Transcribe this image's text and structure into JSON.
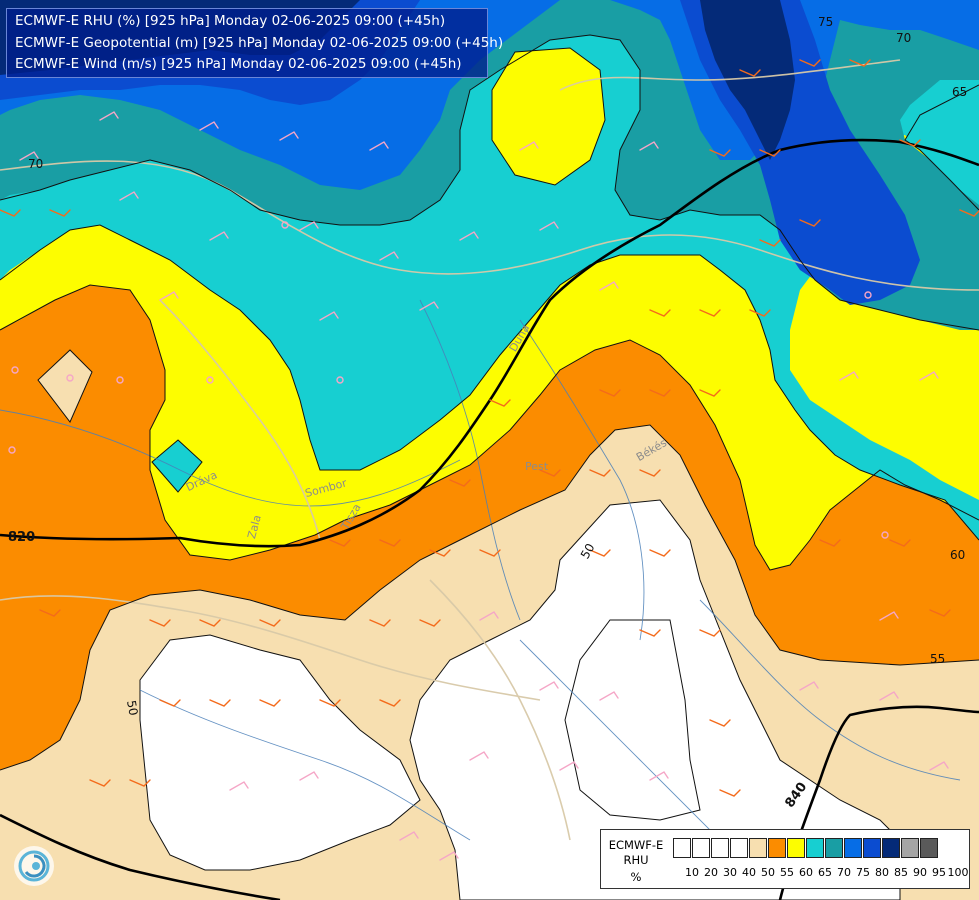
{
  "header": {
    "lines": [
      "ECMWF-E RHU (%) [925 hPa] Monday 02-06-2025 09:00 (+45h)",
      "ECMWF-E Geopotential (m) [925 hPa] Monday 02-06-2025 09:00 (+45h)",
      "ECMWF-E Wind (m/s) [925 hPa] Monday 02-06-2025 09:00 (+45h)"
    ]
  },
  "map": {
    "rhu_contour_labels": [
      "75",
      "70",
      "65",
      "70",
      "60",
      "55",
      "50",
      "50"
    ],
    "geopotential_labels": [
      "820",
      "840"
    ],
    "place_labels": [
      "Pest",
      "Békés",
      "Duna",
      "Sombor",
      "Tisza",
      "Zala",
      "Dráva"
    ]
  },
  "legend": {
    "title_line1": "ECMWF-E",
    "title_line2": "RHU",
    "unit": "%",
    "ticks": [
      "10",
      "20",
      "30",
      "40",
      "50",
      "55",
      "60",
      "65",
      "70",
      "75",
      "80",
      "85",
      "90",
      "95",
      "100"
    ],
    "colors": [
      "#ffffff",
      "#ffffff",
      "#ffffff",
      "#ffffff",
      "#f7dfb0",
      "#fb8c00",
      "#fdfd00",
      "#17cfd1",
      "#199ea4",
      "#066de6",
      "#0b4cd0",
      "#042a78",
      "#a5a5a5",
      "#5a5a5a"
    ]
  },
  "palette": {
    "white": "#ffffff",
    "beige": "#f7dfb0",
    "orange": "#fb8c00",
    "yellow": "#fdfd00",
    "cyan": "#17cfd1",
    "teal": "#199ea4",
    "blue": "#066de6",
    "darkblue": "#0b4cd0",
    "navy": "#042a78"
  }
}
